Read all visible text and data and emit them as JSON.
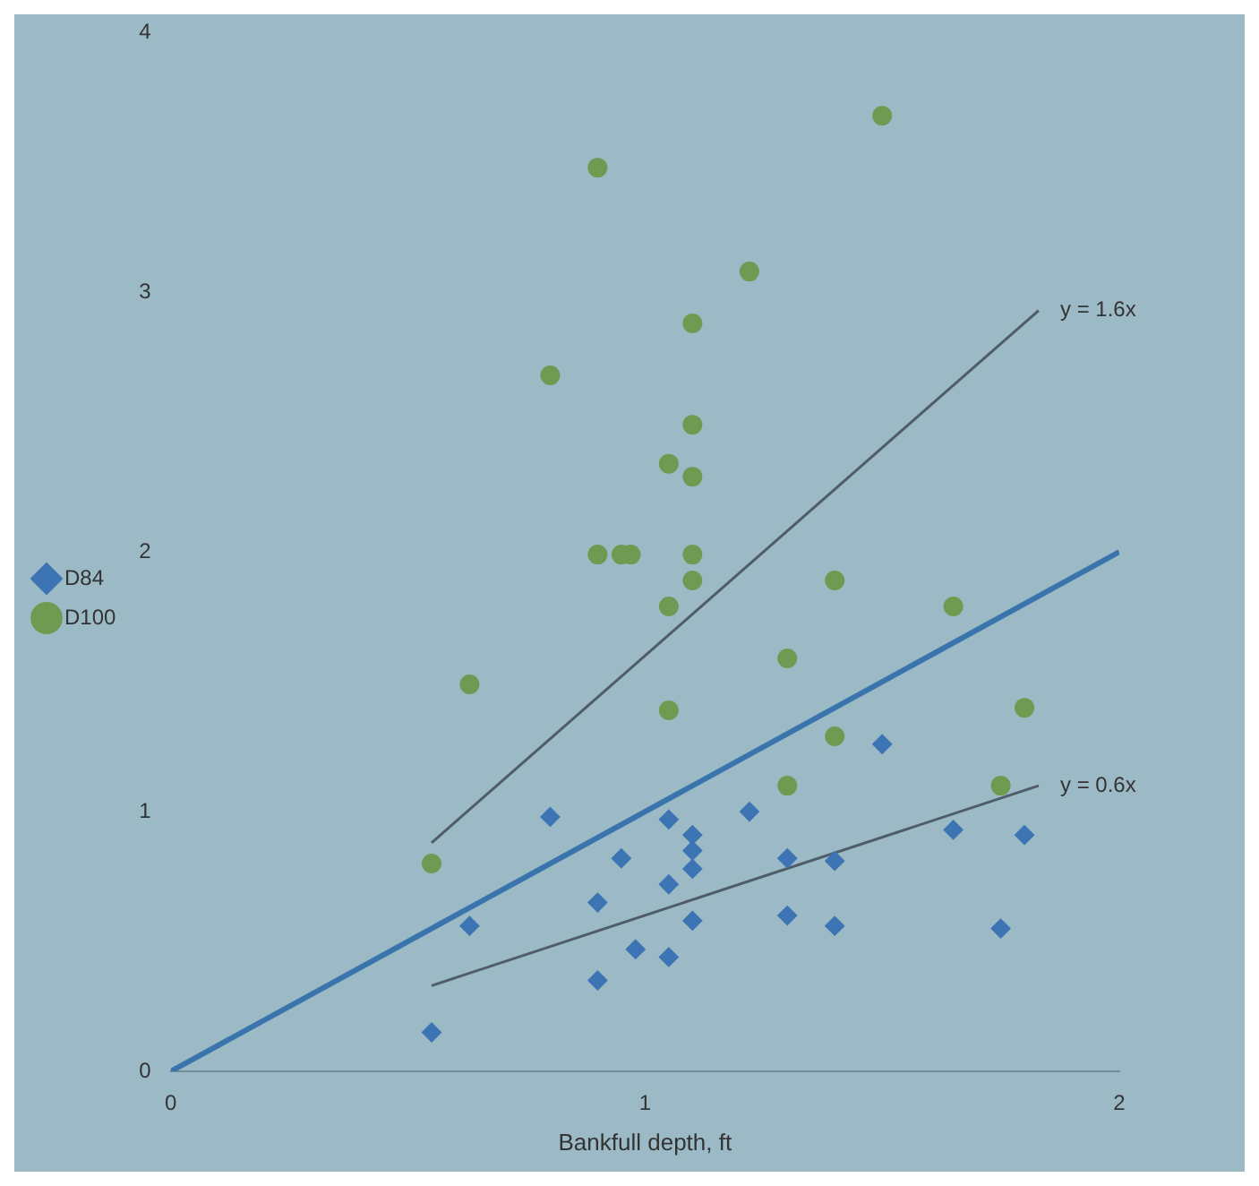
{
  "chart_data": {
    "type": "scatter",
    "xlabel": "Bankfull depth, ft",
    "xlim": [
      0,
      2
    ],
    "xticks": [
      0,
      1,
      2
    ],
    "ylim": [
      0,
      4
    ],
    "yticks": [
      0,
      1,
      2,
      3,
      4
    ],
    "legend": "left",
    "series": [
      {
        "name": "D84",
        "color": "#3d74b4",
        "marker": "diamond",
        "x": [
          0.55,
          0.63,
          0.8,
          0.9,
          0.9,
          0.95,
          0.98,
          1.05,
          1.05,
          1.05,
          1.1,
          1.1,
          1.1,
          1.1,
          1.22,
          1.3,
          1.3,
          1.4,
          1.4,
          1.5,
          1.65,
          1.75,
          1.8
        ],
        "values": [
          0.15,
          0.56,
          0.98,
          0.35,
          0.65,
          0.82,
          0.47,
          0.97,
          0.72,
          0.44,
          0.91,
          0.85,
          0.78,
          0.58,
          1.0,
          0.82,
          0.6,
          0.81,
          0.56,
          1.26,
          0.93,
          0.55,
          0.91
        ]
      },
      {
        "name": "D100",
        "color": "#6e9a52",
        "marker": "circle",
        "x": [
          0.55,
          0.63,
          0.8,
          0.9,
          0.9,
          0.95,
          0.97,
          1.05,
          1.05,
          1.05,
          1.1,
          1.1,
          1.1,
          1.1,
          1.1,
          1.22,
          1.3,
          1.3,
          1.4,
          1.4,
          1.5,
          1.65,
          1.75,
          1.8
        ],
        "values": [
          0.8,
          1.49,
          2.68,
          3.48,
          1.99,
          1.99,
          1.99,
          2.34,
          1.79,
          1.39,
          2.88,
          2.49,
          2.29,
          1.99,
          1.89,
          3.08,
          1.59,
          1.1,
          1.89,
          1.29,
          3.68,
          1.79,
          1.1,
          1.4
        ]
      },
      {
        "type": "line",
        "color": "#3a74ac",
        "marker": "none",
        "x": [
          0,
          2
        ],
        "values": [
          0,
          2
        ]
      },
      {
        "type": "line",
        "color": "#4f5e66",
        "marker": "none",
        "x": [
          0.55,
          1.83
        ],
        "values": [
          0.88,
          2.93
        ]
      },
      {
        "type": "line",
        "color": "#4f5e66",
        "marker": "none",
        "x": [
          0.55,
          1.83
        ],
        "values": [
          0.33,
          1.1
        ]
      }
    ],
    "annotations": [
      {
        "text": "y = 1.6x",
        "x": 1.83,
        "y": 2.93
      },
      {
        "text": "y = 0.6x",
        "x": 1.83,
        "y": 1.1
      }
    ]
  }
}
